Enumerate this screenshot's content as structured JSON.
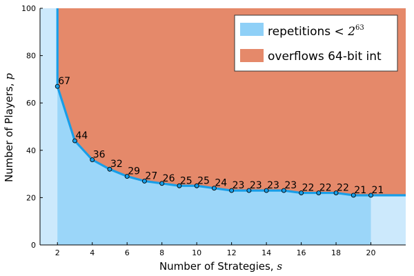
{
  "chart_data": {
    "type": "area",
    "xlabel": "Number of Strategies,",
    "xlabel_var": "s",
    "ylabel": "Number of Players,",
    "ylabel_var": "p",
    "xlim": [
      1,
      22
    ],
    "ylim": [
      0,
      100
    ],
    "xticks": [
      2,
      4,
      6,
      8,
      10,
      12,
      14,
      16,
      18,
      20
    ],
    "yticks": [
      0,
      20,
      40,
      60,
      80,
      100
    ],
    "x": [
      2,
      3,
      4,
      5,
      6,
      7,
      8,
      9,
      10,
      11,
      12,
      13,
      14,
      15,
      16,
      17,
      18,
      19,
      20
    ],
    "y": [
      67,
      44,
      36,
      32,
      29,
      27,
      26,
      25,
      25,
      24,
      23,
      23,
      23,
      23,
      22,
      22,
      22,
      21,
      21
    ],
    "point_labels": [
      "67",
      "44",
      "36",
      "32",
      "29",
      "27",
      "26",
      "25",
      "25",
      "24",
      "23",
      "23",
      "23",
      "23",
      "22",
      "22",
      "22",
      "21",
      "21"
    ],
    "legend_position": "top-right",
    "legend": [
      {
        "name_prefix": "repetitions",
        "name_math": "< 2",
        "name_sup": "63",
        "color": "#8fd0f7"
      },
      {
        "name_prefix": "overflows 64-bit int",
        "name_math": "",
        "name_sup": "",
        "color": "#e5896a"
      }
    ],
    "colors": {
      "line": "#189ee8",
      "fill_blue": "#9bd6f9",
      "fill_light": "#cce9fc",
      "overflow": "#e5896a",
      "point_stroke": "#000000"
    }
  }
}
